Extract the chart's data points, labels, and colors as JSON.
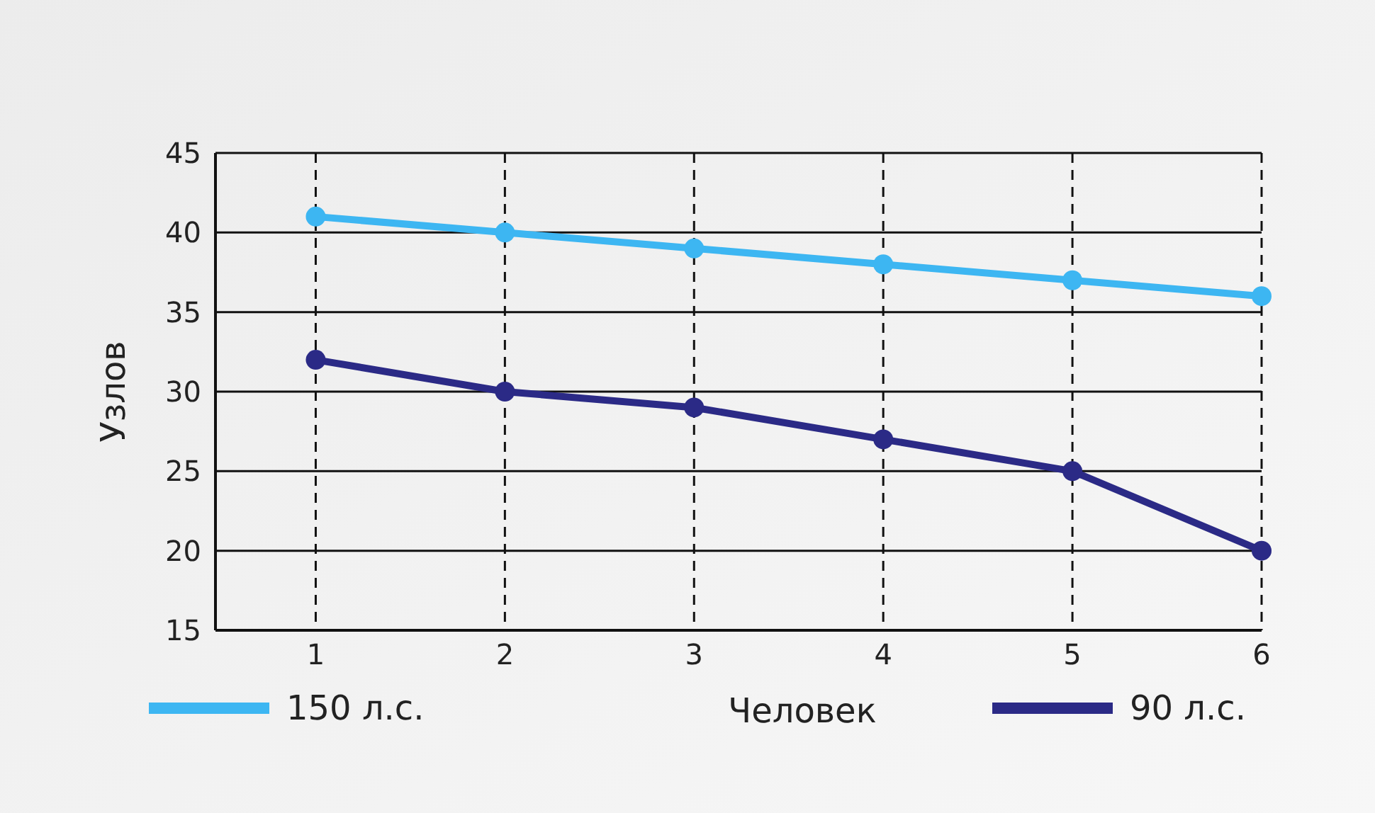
{
  "chart_data": {
    "type": "line",
    "xlabel": "Человек",
    "ylabel": "Узлов",
    "categories": [
      "1",
      "2",
      "3",
      "4",
      "5",
      "6"
    ],
    "series": [
      {
        "name": "150 л.с.",
        "color": "#3db6f2",
        "values": [
          41,
          40,
          39,
          38,
          37,
          36
        ]
      },
      {
        "name": "90 л.с.",
        "color": "#2b2a86",
        "values": [
          32,
          30,
          29,
          27,
          25,
          20
        ]
      }
    ],
    "ylim": [
      15,
      45
    ],
    "yticks": [
      15,
      20,
      25,
      30,
      35,
      40,
      45
    ],
    "grid": true,
    "legend": "bottom",
    "marker": "circle",
    "line_style": "solid"
  }
}
